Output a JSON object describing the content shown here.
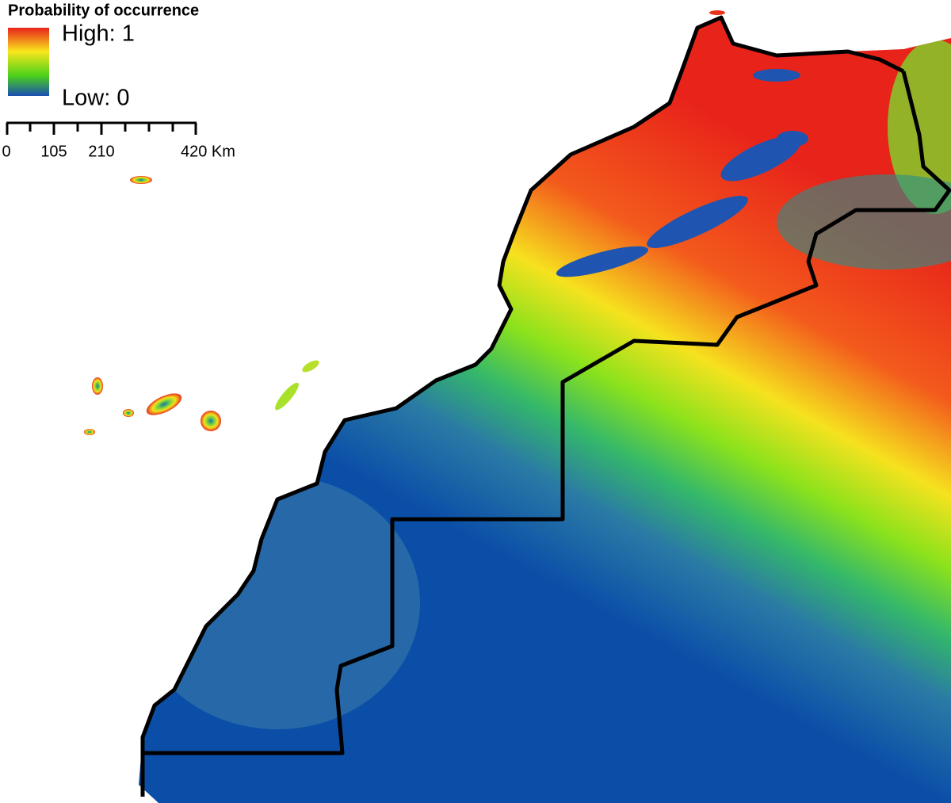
{
  "legend": {
    "title": "Probability of occurrence",
    "high": "High: 1",
    "low": "Low: 0"
  },
  "scale_bar": {
    "labels": [
      "0",
      "105",
      "210",
      "420 Km"
    ]
  }
}
